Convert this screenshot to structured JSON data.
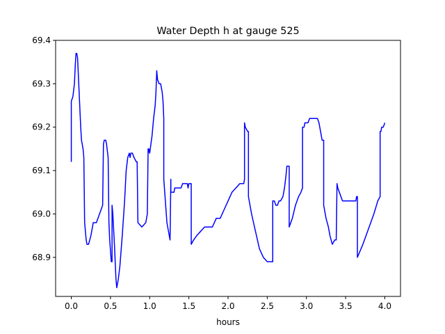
{
  "chart_data": {
    "type": "line",
    "title": "Water Depth h at gauge 525",
    "xlabel": "hours",
    "ylabel": "",
    "xlim": [
      -0.2,
      4.2
    ],
    "ylim": [
      68.81,
      69.4
    ],
    "xticks": [
      0.0,
      0.5,
      1.0,
      1.5,
      2.0,
      2.5,
      3.0,
      3.5,
      4.0
    ],
    "xtick_labels": [
      "0.0",
      "0.5",
      "1.0",
      "1.5",
      "2.0",
      "2.5",
      "3.0",
      "3.5",
      "4.0"
    ],
    "yticks": [
      68.9,
      69.0,
      69.1,
      69.2,
      69.3,
      69.4
    ],
    "ytick_labels": [
      "68.9",
      "69.0",
      "69.1",
      "69.2",
      "69.3",
      "69.4"
    ],
    "grid": false,
    "line_color": "#0000ff",
    "series": [
      {
        "name": "",
        "x": [
          0.0,
          0.0,
          0.02,
          0.04,
          0.05,
          0.06,
          0.07,
          0.08,
          0.1,
          0.12,
          0.13,
          0.14,
          0.15,
          0.16,
          0.17,
          0.18,
          0.19,
          0.2,
          0.21,
          0.22,
          0.25,
          0.28,
          0.32,
          0.36,
          0.4,
          0.41,
          0.42,
          0.44,
          0.45,
          0.47,
          0.48,
          0.49,
          0.51,
          0.52,
          0.52,
          0.53,
          0.55,
          0.57,
          0.58,
          0.6,
          0.62,
          0.65,
          0.68,
          0.7,
          0.72,
          0.74,
          0.75,
          0.76,
          0.78,
          0.8,
          0.83,
          0.84,
          0.85,
          0.9,
          0.95,
          0.97,
          0.98,
          0.98,
          0.99,
          1.0,
          1.03,
          1.05,
          1.07,
          1.08,
          1.09,
          1.1,
          1.12,
          1.14,
          1.16,
          1.17,
          1.18,
          1.18,
          1.22,
          1.26,
          1.27,
          1.27,
          1.28,
          1.29,
          1.3,
          1.31,
          1.32,
          1.33,
          1.35,
          1.38,
          1.4,
          1.42,
          1.44,
          1.46,
          1.48,
          1.49,
          1.5,
          1.51,
          1.52,
          1.53,
          1.53,
          1.56,
          1.6,
          1.65,
          1.7,
          1.75,
          1.8,
          1.85,
          1.9,
          1.95,
          2.0,
          2.05,
          2.1,
          2.15,
          2.2,
          2.21,
          2.21,
          2.22,
          2.25,
          2.26,
          2.26,
          2.3,
          2.35,
          2.4,
          2.45,
          2.5,
          2.53,
          2.56,
          2.57,
          2.57,
          2.58,
          2.59,
          2.61,
          2.63,
          2.65,
          2.67,
          2.7,
          2.72,
          2.74,
          2.75,
          2.76,
          2.77,
          2.78,
          2.78,
          2.82,
          2.86,
          2.9,
          2.93,
          2.95,
          2.95,
          2.96,
          2.97,
          2.98,
          3.0,
          3.02,
          3.04,
          3.06,
          3.08,
          3.1,
          3.12,
          3.14,
          3.16,
          3.18,
          3.2,
          3.21,
          3.22,
          3.22,
          3.25,
          3.28,
          3.3,
          3.33,
          3.36,
          3.38,
          3.39,
          3.39,
          3.4,
          3.42,
          3.44,
          3.46,
          3.48,
          3.5,
          3.52,
          3.55,
          3.58,
          3.6,
          3.63,
          3.64,
          3.65,
          3.65,
          3.72,
          3.8,
          3.86,
          3.91,
          3.94,
          3.94,
          3.95,
          3.96,
          3.97,
          3.98,
          4.0
        ],
        "values": [
          69.12,
          69.26,
          69.27,
          69.3,
          69.34,
          69.37,
          69.37,
          69.36,
          69.28,
          69.2,
          69.17,
          69.16,
          69.15,
          69.13,
          68.98,
          68.96,
          68.94,
          68.93,
          68.93,
          68.93,
          68.95,
          68.98,
          68.98,
          69.0,
          69.02,
          69.16,
          69.17,
          69.17,
          69.16,
          69.13,
          68.98,
          68.94,
          68.89,
          68.89,
          69.02,
          69.0,
          68.93,
          68.85,
          68.83,
          68.85,
          68.88,
          68.95,
          69.03,
          69.1,
          69.13,
          69.14,
          69.13,
          69.14,
          69.14,
          69.13,
          69.12,
          69.12,
          68.98,
          68.97,
          68.98,
          69.0,
          69.15,
          69.14,
          69.15,
          69.14,
          69.18,
          69.22,
          69.25,
          69.28,
          69.33,
          69.31,
          69.3,
          69.3,
          69.28,
          69.26,
          69.22,
          69.08,
          68.98,
          68.94,
          69.08,
          69.05,
          69.05,
          69.05,
          69.05,
          69.05,
          69.06,
          69.06,
          69.06,
          69.06,
          69.06,
          69.07,
          69.07,
          69.07,
          69.07,
          69.06,
          69.07,
          69.07,
          69.07,
          69.07,
          68.93,
          68.94,
          68.95,
          68.96,
          68.97,
          68.97,
          68.97,
          68.99,
          68.99,
          69.01,
          69.03,
          69.05,
          69.06,
          69.07,
          69.07,
          69.08,
          69.21,
          69.2,
          69.19,
          69.19,
          69.04,
          69.0,
          68.96,
          68.92,
          68.9,
          68.89,
          68.89,
          68.89,
          68.89,
          69.03,
          69.03,
          69.03,
          69.02,
          69.02,
          69.03,
          69.03,
          69.04,
          69.06,
          69.09,
          69.11,
          69.11,
          69.11,
          69.11,
          68.97,
          68.99,
          69.02,
          69.04,
          69.05,
          69.06,
          69.2,
          69.2,
          69.2,
          69.21,
          69.21,
          69.21,
          69.22,
          69.22,
          69.22,
          69.22,
          69.22,
          69.22,
          69.21,
          69.19,
          69.17,
          69.17,
          69.17,
          69.02,
          68.99,
          68.97,
          68.95,
          68.93,
          68.94,
          68.94,
          69.07,
          69.07,
          69.06,
          69.05,
          69.04,
          69.03,
          69.03,
          69.03,
          69.03,
          69.03,
          69.03,
          69.03,
          69.03,
          69.04,
          69.04,
          68.9,
          68.93,
          68.97,
          69.0,
          69.03,
          69.04,
          69.19,
          69.19,
          69.2,
          69.2,
          69.2,
          69.21
        ]
      }
    ]
  }
}
